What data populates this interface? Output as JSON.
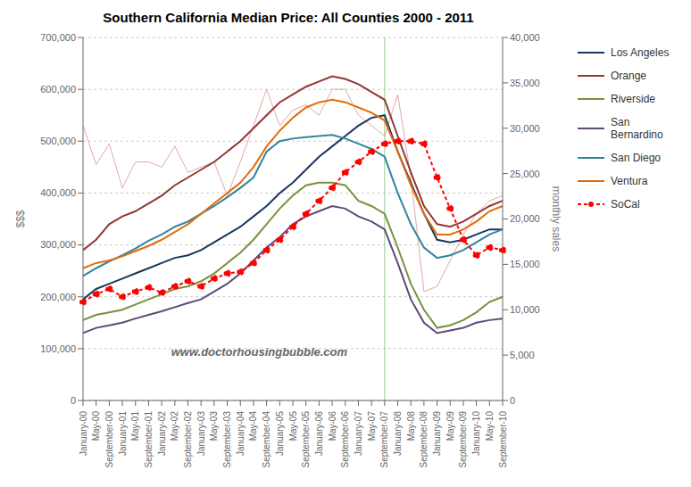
{
  "chart_data": {
    "type": "line",
    "title": "Southern California Median Price:  All Counties 2000 - 2011",
    "y_label": "$$$",
    "y2_label": "monthly sales",
    "annotations": [
      {
        "text": "www.doctorhousingbubble.com"
      }
    ],
    "categories": [
      "January-00",
      "May-00",
      "September-00",
      "January-01",
      "May-01",
      "September-01",
      "January-02",
      "May-02",
      "September-02",
      "January-03",
      "May-03",
      "September-03",
      "January-04",
      "May-04",
      "September-04",
      "January-05",
      "May-05",
      "September-05",
      "January-06",
      "May-06",
      "September-06",
      "January-07",
      "May-07",
      "September-07",
      "January-08",
      "May-08",
      "September-08",
      "January-09",
      "May-09",
      "September-09",
      "January-10",
      "May-10",
      "September-10"
    ],
    "series": [
      {
        "color": "#d4857a",
        "values": [
          530000,
          455000,
          495000,
          410000,
          460000,
          460000,
          450000,
          490000,
          440000,
          450000,
          460000,
          395000,
          460000,
          530000,
          600000,
          530000,
          560000,
          570000,
          550000,
          600000,
          600000,
          550000,
          530000,
          510000,
          590000,
          430000,
          210000,
          220000,
          270000,
          320000,
          360000,
          385000,
          395000
        ]
      },
      {
        "name": "Los Angeles",
        "color": "#17375e",
        "values": [
          195000,
          215000,
          225000,
          235000,
          245000,
          255000,
          265000,
          275000,
          280000,
          290000,
          305000,
          320000,
          335000,
          355000,
          375000,
          400000,
          420000,
          445000,
          470000,
          490000,
          510000,
          530000,
          545000,
          550000,
          480000,
          420000,
          360000,
          310000,
          305000,
          310000,
          320000,
          330000,
          330000
        ]
      },
      {
        "name": "Orange",
        "color": "#943634",
        "values": [
          290000,
          310000,
          340000,
          355000,
          365000,
          380000,
          395000,
          415000,
          430000,
          445000,
          460000,
          480000,
          500000,
          525000,
          550000,
          575000,
          590000,
          605000,
          615000,
          625000,
          620000,
          610000,
          595000,
          580000,
          510000,
          440000,
          375000,
          340000,
          335000,
          345000,
          360000,
          375000,
          385000
        ]
      },
      {
        "name": "Riverside",
        "color": "#76923c",
        "values": [
          155000,
          165000,
          170000,
          175000,
          185000,
          195000,
          205000,
          215000,
          220000,
          230000,
          245000,
          265000,
          285000,
          310000,
          340000,
          370000,
          395000,
          415000,
          420000,
          420000,
          415000,
          385000,
          375000,
          360000,
          295000,
          225000,
          175000,
          140000,
          145000,
          155000,
          170000,
          190000,
          200000
        ]
      },
      {
        "name": "San\nBernardino",
        "color": "#60497a",
        "values": [
          130000,
          140000,
          145000,
          150000,
          158000,
          165000,
          172000,
          180000,
          188000,
          195000,
          210000,
          225000,
          245000,
          270000,
          295000,
          315000,
          340000,
          355000,
          365000,
          375000,
          370000,
          355000,
          345000,
          330000,
          265000,
          195000,
          150000,
          130000,
          135000,
          140000,
          150000,
          155000,
          158000
        ]
      },
      {
        "name": "San Diego",
        "color": "#31849b",
        "values": [
          240000,
          255000,
          268000,
          280000,
          293000,
          308000,
          320000,
          335000,
          345000,
          360000,
          375000,
          392000,
          410000,
          430000,
          480000,
          500000,
          505000,
          508000,
          510000,
          512000,
          505000,
          495000,
          485000,
          470000,
          400000,
          340000,
          295000,
          275000,
          280000,
          290000,
          305000,
          320000,
          330000
        ]
      },
      {
        "name": "Ventura",
        "color": "#e36c09",
        "values": [
          255000,
          265000,
          270000,
          278000,
          288000,
          298000,
          310000,
          325000,
          340000,
          360000,
          380000,
          400000,
          420000,
          450000,
          490000,
          520000,
          545000,
          565000,
          575000,
          580000,
          575000,
          565000,
          555000,
          540000,
          480000,
          415000,
          360000,
          320000,
          320000,
          330000,
          345000,
          365000,
          375000
        ]
      },
      {
        "name": "SoCal",
        "color": "#ff0000",
        "marker": "o",
        "line_style": "dashed",
        "values": [
          190000,
          205000,
          215000,
          200000,
          210000,
          218000,
          208000,
          220000,
          230000,
          220000,
          235000,
          245000,
          248000,
          265000,
          290000,
          310000,
          335000,
          360000,
          385000,
          410000,
          440000,
          460000,
          480000,
          495000,
          500000,
          500000,
          495000,
          430000,
          370000,
          310000,
          280000,
          295000,
          290000
        ]
      }
    ],
    "ylim": [
      0,
      700000
    ],
    "yticks": [
      0,
      {
        "value": 100000,
        "label": "100,000"
      },
      {
        "value": 200000,
        "label": "200,000"
      },
      {
        "value": 300000,
        "label": "300,000"
      },
      {
        "value": 400000,
        "label": "400,000"
      },
      {
        "value": 500000,
        "label": "500,000"
      },
      {
        "value": 600000,
        "label": "600,000"
      },
      {
        "value": 700000,
        "label": "700,000"
      }
    ],
    "y2lim": [
      0,
      40000
    ],
    "y2ticks": [
      0,
      {
        "value": 5000,
        "label": "5,000"
      },
      {
        "value": 10000,
        "label": "10,000"
      },
      {
        "value": 15000,
        "label": "15,000"
      },
      {
        "value": 20000,
        "label": "20,000"
      },
      {
        "value": 25000,
        "label": "25,000"
      },
      {
        "value": 30000,
        "label": "30,000"
      },
      {
        "value": 35000,
        "label": "35,000"
      },
      {
        "value": 40000,
        "label": "40,000"
      }
    ],
    "vertical_line": {
      "x": "September-07",
      "color": "#99cc99"
    },
    "grid": true
  }
}
